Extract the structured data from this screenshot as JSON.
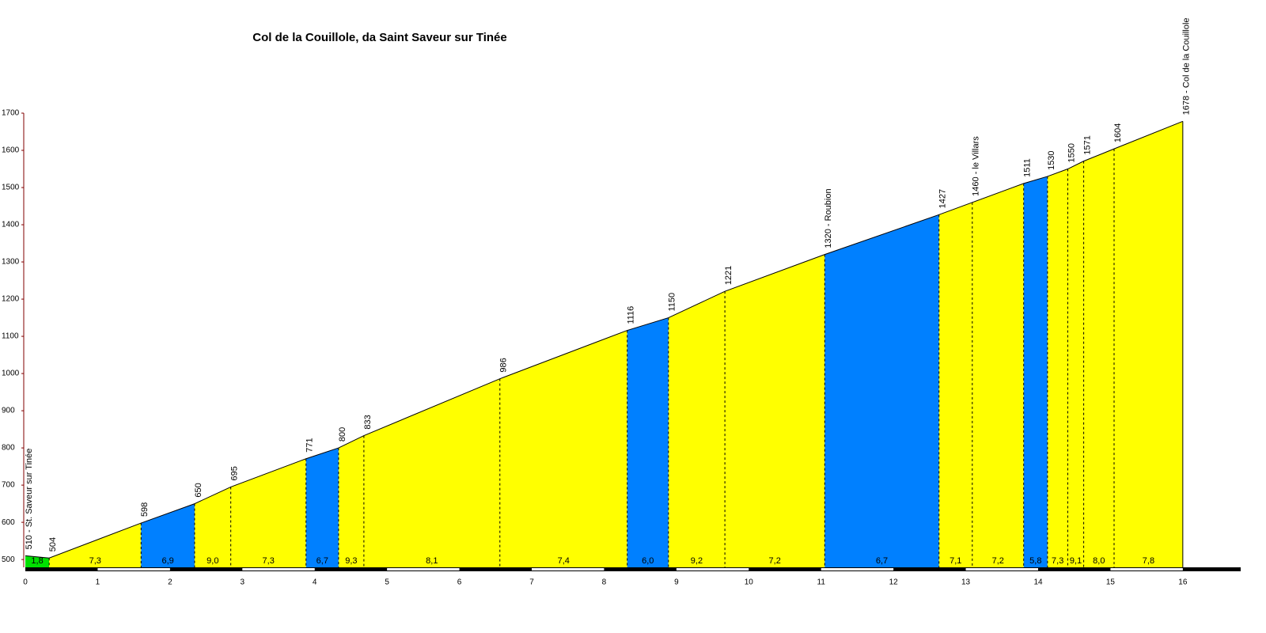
{
  "chart_data": {
    "type": "area",
    "title": "Col de la Couillole, da Saint Saveur sur Tinée",
    "x": [
      0,
      0.33,
      1.6,
      2.34,
      2.84,
      3.88,
      4.33,
      4.68,
      6.56,
      8.32,
      8.89,
      9.67,
      11.05,
      12.63,
      13.09,
      13.8,
      14.13,
      14.41,
      14.63,
      15.05,
      16
    ],
    "values": [
      510,
      504,
      598,
      650,
      695,
      771,
      800,
      833,
      986,
      1116,
      1150,
      1221,
      1320,
      1427,
      1460,
      1511,
      1530,
      1550,
      1571,
      1604,
      1678
    ],
    "value_labels": [
      "510 - St. Saveur sur Tinée",
      "504",
      "598",
      "650",
      "695",
      "771",
      "800",
      "833",
      "986",
      "1116",
      "1150",
      "1221",
      "1320 - Roubion",
      "1427",
      "1460 - le Villars",
      "1511",
      "1530",
      "1550",
      "1571",
      "1604",
      "1678 - Col de la Couillole"
    ],
    "segments": {
      "values": [
        1.8,
        7.3,
        6.9,
        9.0,
        7.3,
        6.7,
        9.3,
        8.1,
        7.4,
        6.0,
        9.2,
        7.2,
        6.7,
        7.1,
        7.2,
        5.8,
        7.3,
        9.1,
        8.0,
        7.8
      ],
      "value_labels": [
        "1,8",
        "7,3",
        "6,9",
        "9,0",
        "7,3",
        "6,7",
        "9,3",
        "8,1",
        "7,4",
        "6,0",
        "9,2",
        "7,2",
        "6,7",
        "7,1",
        "7,2",
        "5,8",
        "7,3",
        "9,1",
        "8,0",
        "7,8"
      ],
      "colors": [
        "#00e000",
        "#ffff00",
        "#0080ff",
        "#ffff00",
        "#ffff00",
        "#0080ff",
        "#ffff00",
        "#ffff00",
        "#ffff00",
        "#0080ff",
        "#ffff00",
        "#ffff00",
        "#0080ff",
        "#ffff00",
        "#ffff00",
        "#0080ff",
        "#ffff00",
        "#ffff00",
        "#ffff00",
        "#ffff00"
      ]
    },
    "xlim": [
      0,
      16.8
    ],
    "xticks": [
      0,
      1,
      2,
      3,
      4,
      5,
      6,
      7,
      8,
      9,
      10,
      11,
      12,
      13,
      14,
      15,
      16
    ],
    "ylim": [
      479,
      1700
    ],
    "yticks": [
      500,
      600,
      700,
      800,
      900,
      1000,
      1100,
      1200,
      1300,
      1400,
      1500,
      1600,
      1700
    ]
  }
}
